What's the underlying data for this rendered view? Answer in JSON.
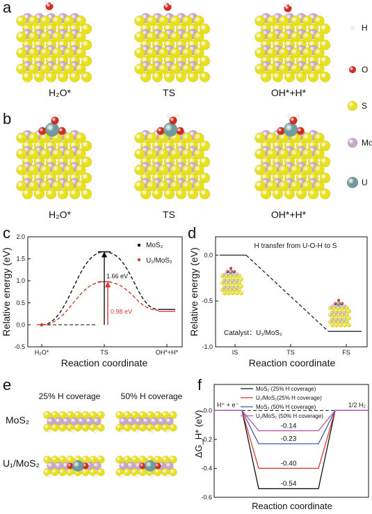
{
  "panels": {
    "a": {
      "label": "a",
      "captions": [
        "H₂O*",
        "TS",
        "OH*+H*"
      ]
    },
    "b": {
      "label": "b",
      "captions": [
        "H₂O*",
        "TS",
        "OH*+H*"
      ]
    },
    "legend": [
      {
        "name": "H",
        "color": "#f2f2f2"
      },
      {
        "name": "O",
        "color": "#d22b1e"
      },
      {
        "name": "S",
        "color": "#e8e01e"
      },
      {
        "name": "Mo",
        "color": "#c8a8c8"
      },
      {
        "name": "U",
        "color": "#6f9a9e"
      }
    ],
    "e": {
      "label": "e",
      "col_headers": [
        "25% H coverage",
        "50% H coverage"
      ],
      "row_headers": [
        "MoS₂",
        "U₁/MoS₂"
      ]
    }
  },
  "chart_data": [
    {
      "panel": "c",
      "type": "line",
      "xlabel": "Reaction coordinate",
      "ylabel": "Relative energy (eV)",
      "categories": [
        "H₂O*",
        "TS",
        "OH*+H*"
      ],
      "ylim": [
        -0.5,
        2.0
      ],
      "yticks": [
        "-0.5",
        "0.0",
        "0.5",
        "1.0",
        "1.5",
        "2.0"
      ],
      "series": [
        {
          "name": "MoS₂",
          "values": [
            0.0,
            1.66,
            0.35
          ],
          "color": "#111111"
        },
        {
          "name": "U₁/MoS₂",
          "values": [
            0.0,
            0.98,
            0.33
          ],
          "color": "#d43a2f"
        }
      ],
      "annotations": [
        "1.66 eV",
        "0.98 eV"
      ]
    },
    {
      "panel": "d",
      "type": "line",
      "title": "H transfer from U-O-H to S",
      "xlabel": "Reaction coordinate",
      "ylabel": "Relative energy (eV)",
      "categories": [
        "IS",
        "TS",
        "FS"
      ],
      "ylim": [
        -1.0,
        0.2
      ],
      "yticks": [
        "0.0",
        "-0.5",
        "-1.0"
      ],
      "series": [
        {
          "values": [
            0.0,
            -0.42,
            -0.83
          ],
          "color": "#111111"
        }
      ],
      "note": "Catalyst：U₁/MoS₂"
    },
    {
      "panel": "f",
      "type": "line",
      "xlabel": "Reaction coordinate",
      "ylabel": "ΔG_H* (eV)",
      "ylim": [
        -0.6,
        0.0
      ],
      "yticks": [
        "0.0",
        "-0.2",
        "-0.4",
        "-0.6"
      ],
      "state_labels": [
        "H⁺ + e⁻",
        "1/2 H₂"
      ],
      "series": [
        {
          "name": "MoS₂ (25% H coverage)",
          "value": -0.54,
          "label": "-0.54",
          "color": "#111111"
        },
        {
          "name": "U₁/MoS₂(25% H coverage)",
          "value": -0.4,
          "label": "-0.40",
          "color": "#d43a2f"
        },
        {
          "name": "MoS₂ (50% H coverage)",
          "value": -0.23,
          "label": "-0.23",
          "color": "#3a5fa8"
        },
        {
          "name": "U₁/MoS₂ (50% H coverage)",
          "value": -0.14,
          "label": "-0.14",
          "color": "#b05aa8"
        }
      ]
    }
  ]
}
